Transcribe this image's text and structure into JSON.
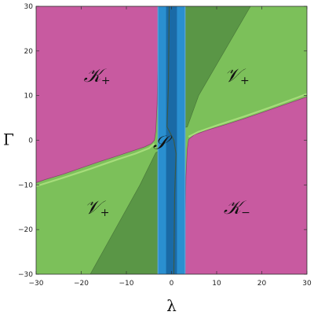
{
  "chart_data": {
    "type": "area",
    "title": "",
    "xlabel": "λ",
    "ylabel": "Γ",
    "xlim": [
      -30,
      30
    ],
    "ylim": [
      -30,
      30
    ],
    "xticks": [
      -30,
      -20,
      -10,
      0,
      10,
      20,
      30
    ],
    "yticks": [
      -30,
      -20,
      -10,
      0,
      10,
      20,
      30
    ],
    "grid": false,
    "colors": {
      "K": "#c85aa0",
      "V": "#7cc05a",
      "V_dark": "#5a9646",
      "S": "#2a8fd0",
      "S_dark": "#1a6aa6",
      "S_edge": "#5aa6dc"
    },
    "regions": [
      {
        "name": "K_plus_upper_left",
        "color_key": "K",
        "polygon": [
          [
            -30,
            -9.5
          ],
          [
            -28,
            -8.8
          ],
          [
            -24,
            -7.6
          ],
          [
            -20,
            -6.2
          ],
          [
            -16,
            -4.8
          ],
          [
            -12,
            -3.5
          ],
          [
            -9,
            -2.5
          ],
          [
            -6,
            -1.5
          ],
          [
            -4.5,
            -0.8
          ],
          [
            -3.8,
            0
          ],
          [
            -3.5,
            2
          ],
          [
            -3.2,
            8
          ],
          [
            -3,
            20
          ],
          [
            -3,
            30
          ],
          [
            -30,
            30
          ]
        ]
      },
      {
        "name": "V_plus_lower_left",
        "color_key": "V",
        "polygon": [
          [
            -30,
            -10.5
          ],
          [
            -28,
            -9.8
          ],
          [
            -24,
            -8.6
          ],
          [
            -20,
            -7.2
          ],
          [
            -16,
            -5.8
          ],
          [
            -12,
            -4.5
          ],
          [
            -9,
            -3.5
          ],
          [
            -6,
            -2.5
          ],
          [
            -4.5,
            -1.5
          ],
          [
            -3.2,
            -0.6
          ],
          [
            -2,
            -1.6
          ],
          [
            -1.2,
            -6
          ],
          [
            -0.8,
            -12
          ],
          [
            -0.6,
            -20
          ],
          [
            -0.5,
            -30
          ],
          [
            -30,
            -30
          ]
        ]
      },
      {
        "name": "V_plus_upper_right",
        "color_key": "V",
        "polygon": [
          [
            3,
            30
          ],
          [
            3,
            20
          ],
          [
            3.2,
            8
          ],
          [
            3.5,
            2
          ],
          [
            3.8,
            0.6
          ],
          [
            5,
            1.5
          ],
          [
            8,
            2.6
          ],
          [
            12,
            3.8
          ],
          [
            16,
            5.2
          ],
          [
            20,
            6.6
          ],
          [
            24,
            8
          ],
          [
            28,
            9.4
          ],
          [
            30,
            10.2
          ],
          [
            30,
            30
          ]
        ]
      },
      {
        "name": "V_dark_upper",
        "color_key": "V_dark",
        "polygon": [
          [
            -1,
            30
          ],
          [
            17.5,
            30
          ],
          [
            6,
            10
          ],
          [
            3.5,
            3
          ],
          [
            1.5,
            2.5
          ],
          [
            0,
            3.5
          ],
          [
            -0.7,
            12
          ]
        ]
      },
      {
        "name": "V_dark_lower",
        "color_key": "V_dark",
        "polygon": [
          [
            -18,
            -30
          ],
          [
            -0.5,
            -30
          ],
          [
            -0.7,
            -12
          ],
          [
            -1,
            -4
          ],
          [
            -2,
            -2
          ],
          [
            -3.5,
            -2.8
          ],
          [
            -7,
            -10
          ]
        ]
      },
      {
        "name": "K_minus_lower_right",
        "color_key": "K",
        "polygon": [
          [
            30,
            9.7
          ],
          [
            28,
            9
          ],
          [
            24,
            7.6
          ],
          [
            20,
            6.2
          ],
          [
            16,
            4.8
          ],
          [
            12,
            3.5
          ],
          [
            8,
            2.3
          ],
          [
            5,
            1.2
          ],
          [
            3.8,
            0.2
          ],
          [
            3.5,
            -2
          ],
          [
            3.2,
            -8
          ],
          [
            3,
            -20
          ],
          [
            3,
            -30
          ],
          [
            30,
            -30
          ]
        ]
      },
      {
        "name": "S_strip",
        "color_key": "S",
        "polygon": [
          [
            -3,
            30
          ],
          [
            3,
            30
          ],
          [
            3,
            -30
          ],
          [
            -3,
            -30
          ]
        ]
      },
      {
        "name": "S_strip_core",
        "color_key": "S_dark",
        "polygon": [
          [
            -1.2,
            30
          ],
          [
            1.2,
            30
          ],
          [
            1.2,
            -30
          ],
          [
            -1.2,
            -30
          ]
        ]
      }
    ],
    "boundaries": [
      {
        "name": "lower_left_thin_band",
        "points": [
          [
            -30,
            -10.3
          ],
          [
            -24,
            -8.4
          ],
          [
            -18,
            -6.4
          ],
          [
            -12,
            -4.3
          ],
          [
            -8,
            -3
          ],
          [
            -5,
            -1.8
          ],
          [
            -3.8,
            -0.8
          ]
        ]
      },
      {
        "name": "upper_right_thin_band",
        "points": [
          [
            3.8,
            0.8
          ],
          [
            6,
            1.9
          ],
          [
            10,
            3.3
          ],
          [
            16,
            5.3
          ],
          [
            22,
            7.4
          ],
          [
            28,
            9.6
          ],
          [
            30,
            10.4
          ]
        ]
      },
      {
        "name": "s_divider",
        "points": [
          [
            -0.5,
            30
          ],
          [
            -0.7,
            12
          ],
          [
            -1,
            3
          ],
          [
            0.5,
            0
          ],
          [
            1,
            -3
          ],
          [
            0.7,
            -12
          ],
          [
            0.5,
            -30
          ]
        ]
      }
    ],
    "labels": [
      {
        "text": "𝒦",
        "sub": "+",
        "x": -16.5,
        "y": 14.5
      },
      {
        "text": "𝒱",
        "sub": "+",
        "x": 14.5,
        "y": 14.5
      },
      {
        "text": "𝒮",
        "sub": "",
        "x": -2.5,
        "y": -0.5
      },
      {
        "text": "𝒱",
        "sub": "+",
        "x": -16.5,
        "y": -15
      },
      {
        "text": "𝒦",
        "sub": "−",
        "x": 14.5,
        "y": -15
      }
    ]
  }
}
